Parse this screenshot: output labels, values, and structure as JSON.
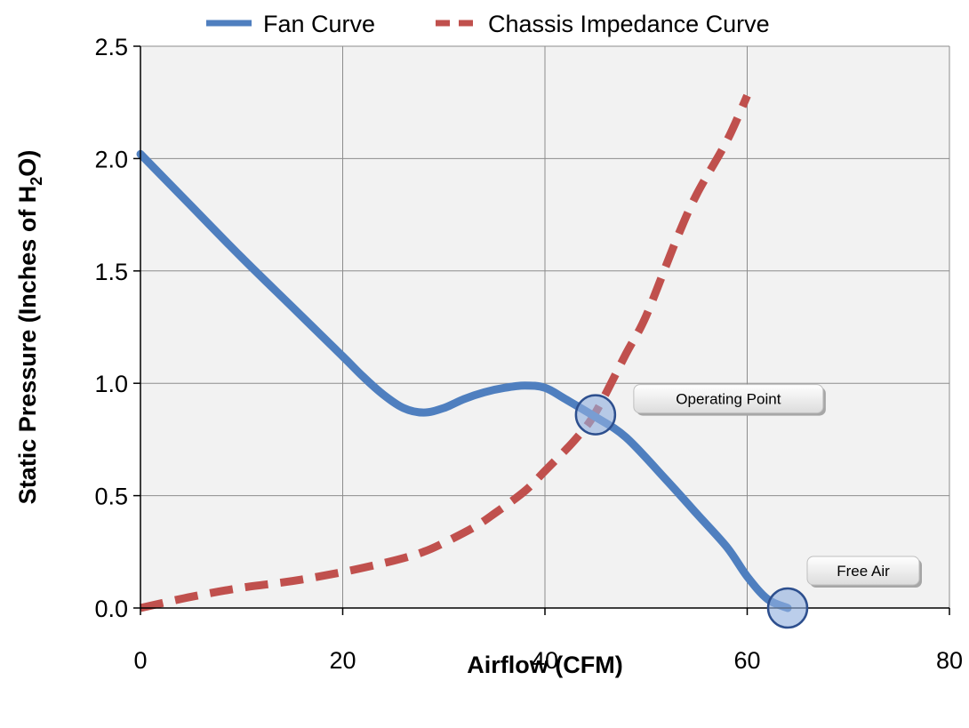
{
  "chart_data": {
    "type": "line",
    "xlabel": "Airflow (CFM)",
    "ylabel": {
      "prefix": "Static Pressure (Inches of H",
      "subscript": "2",
      "suffix": "O)"
    },
    "xlim": [
      0,
      80
    ],
    "ylim": [
      0,
      2.5
    ],
    "xticks": [
      0,
      20,
      40,
      60,
      80
    ],
    "xtick_labels": [
      "0",
      "20",
      "40",
      "60",
      "80"
    ],
    "yticks": [
      0,
      0.5,
      1.0,
      1.5,
      2.0,
      2.5
    ],
    "ytick_labels": [
      "0.0",
      "0.5",
      "1.0",
      "1.5",
      "2.0",
      "2.5"
    ],
    "grid": true,
    "legend_position": "top",
    "series": [
      {
        "name": "Fan Curve",
        "color": "#4f7fbf",
        "style": "solid",
        "x": [
          0,
          5,
          10,
          15,
          20,
          22,
          24,
          26,
          28,
          30,
          32,
          34,
          36,
          38,
          40,
          42,
          45,
          48,
          52,
          55,
          58,
          60,
          62,
          64
        ],
        "y": [
          2.02,
          1.79,
          1.56,
          1.34,
          1.12,
          1.03,
          0.95,
          0.89,
          0.87,
          0.89,
          0.93,
          0.96,
          0.98,
          0.99,
          0.98,
          0.93,
          0.85,
          0.76,
          0.57,
          0.42,
          0.27,
          0.14,
          0.04,
          0.0
        ]
      },
      {
        "name": "Chassis Impedance Curve",
        "color": "#c0504d",
        "style": "dashed",
        "x": [
          0,
          5,
          10,
          15,
          20,
          25,
          28,
          30,
          33,
          35,
          38,
          40,
          43,
          45,
          48,
          50,
          53,
          55,
          58,
          60
        ],
        "y": [
          0.0,
          0.05,
          0.09,
          0.12,
          0.16,
          0.21,
          0.25,
          0.29,
          0.36,
          0.42,
          0.52,
          0.61,
          0.75,
          0.87,
          1.13,
          1.3,
          1.64,
          1.84,
          2.08,
          2.28
        ]
      }
    ],
    "annotations": [
      {
        "label": "Operating Point",
        "x": 45,
        "y": 0.86
      },
      {
        "label": "Free Air",
        "x": 64,
        "y": 0.0
      }
    ]
  }
}
